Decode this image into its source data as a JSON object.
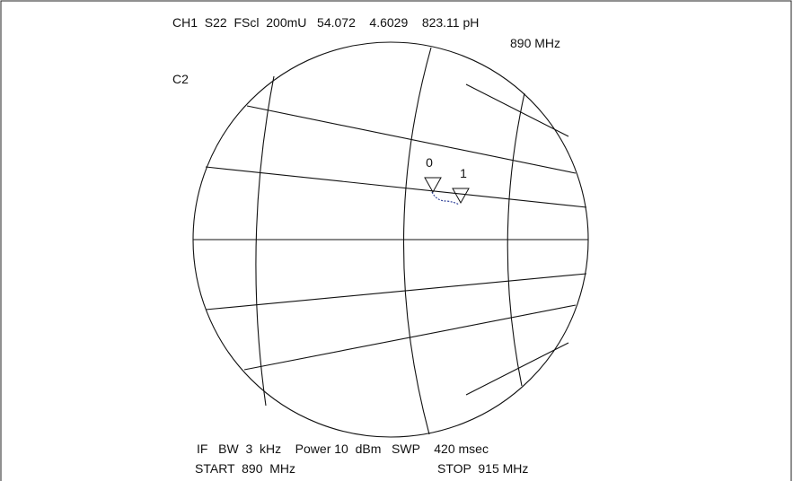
{
  "header": {
    "status": "CH1  S22  FScl  200mU   54.072    4.6029    823.11 pH",
    "marker_frequency": "890 MHz",
    "channel_label": "C2"
  },
  "markers": [
    {
      "label": "0"
    },
    {
      "label": "1"
    }
  ],
  "footer": {
    "settings": "IF   BW  3  kHz    Power 10  dBm   SWP    420 msec",
    "start": "START  890  MHz",
    "stop": "STOP  915 MHz"
  }
}
